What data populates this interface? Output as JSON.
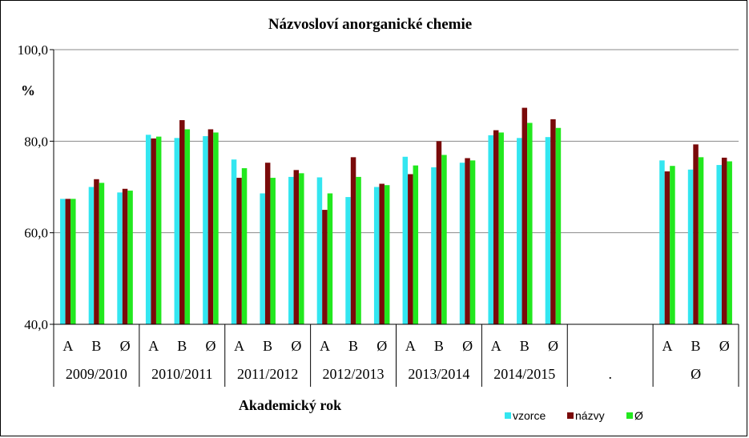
{
  "chart_data": {
    "type": "bar",
    "title": "Názvosloví anorganické chemie",
    "ylabel": "%",
    "xlabel": "Akademický rok",
    "ylim": [
      40,
      100
    ],
    "yticks": [
      "40,0",
      "60,0",
      "80,0",
      "100,0"
    ],
    "grid": true,
    "legend_position": "bottom-right",
    "groups": [
      {
        "label": "2009/2010",
        "subcategories": [
          "A",
          "B",
          "Ø"
        ]
      },
      {
        "label": "2010/2011",
        "subcategories": [
          "A",
          "B",
          "Ø"
        ]
      },
      {
        "label": "2011/2012",
        "subcategories": [
          "A",
          "B",
          "Ø"
        ]
      },
      {
        "label": "2012/2013",
        "subcategories": [
          "A",
          "B",
          "Ø"
        ]
      },
      {
        "label": "2013/2014",
        "subcategories": [
          "A",
          "B",
          "Ø"
        ]
      },
      {
        "label": "2014/2015",
        "subcategories": [
          "A",
          "B",
          "Ø"
        ]
      },
      {
        "label": ".",
        "subcategories": [
          "",
          "",
          ""
        ]
      },
      {
        "label": "Ø",
        "subcategories": [
          "A",
          "B",
          "Ø"
        ]
      }
    ],
    "series": [
      {
        "name": "vzorce",
        "color": "#33E6F0",
        "values": [
          67.4,
          70.0,
          68.8,
          81.4,
          80.7,
          81.1,
          76.0,
          68.6,
          72.2,
          72.1,
          67.8,
          70.0,
          76.6,
          74.3,
          75.3,
          81.3,
          80.7,
          80.9,
          null,
          null,
          null,
          75.8,
          73.8,
          74.8
        ]
      },
      {
        "name": "názvy",
        "color": "#7A0A0A",
        "values": [
          67.4,
          71.7,
          69.6,
          80.6,
          84.6,
          82.6,
          72.0,
          75.3,
          73.7,
          65.0,
          76.5,
          70.7,
          72.8,
          80.0,
          76.3,
          82.4,
          87.3,
          84.8,
          null,
          null,
          null,
          73.4,
          79.3,
          76.4
        ]
      },
      {
        "name": "Ø",
        "color": "#22E81E",
        "values": [
          67.4,
          70.9,
          69.2,
          81.0,
          82.6,
          81.9,
          74.1,
          72.0,
          73.0,
          68.6,
          72.2,
          70.4,
          74.7,
          77.0,
          75.8,
          81.9,
          84.0,
          82.9,
          null,
          null,
          null,
          74.6,
          76.5,
          75.6
        ]
      }
    ]
  }
}
